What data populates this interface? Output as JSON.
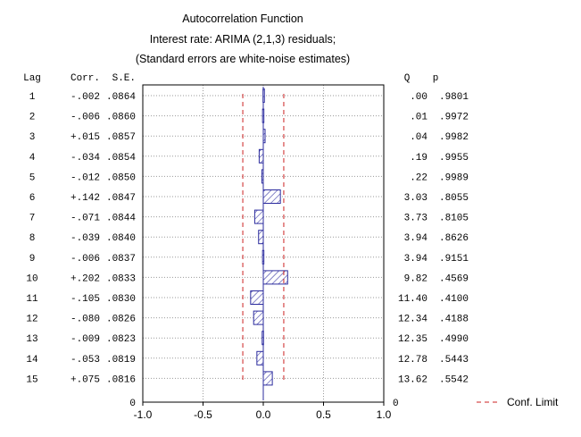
{
  "chart_data": {
    "type": "bar",
    "orientation": "horizontal",
    "title": "Autocorrelation Function",
    "subtitle": "Interest rate: ARIMA (2,1,3) residuals;",
    "subtitle2": "(Standard errors are white-noise estimates)",
    "column_headers": {
      "lag": "Lag",
      "corr": "Corr.",
      "se": "S.E.",
      "q": "Q",
      "p": "p"
    },
    "lags": [
      "1",
      "2",
      "3",
      "4",
      "5",
      "6",
      "7",
      "8",
      "9",
      "10",
      "11",
      "12",
      "13",
      "14",
      "15"
    ],
    "corr": [
      -0.002,
      -0.006,
      0.015,
      -0.034,
      -0.012,
      0.142,
      -0.071,
      -0.039,
      -0.006,
      0.202,
      -0.105,
      -0.08,
      -0.009,
      -0.053,
      0.075
    ],
    "corr_labels": [
      "-.002",
      "-.006",
      "+.015",
      "-.034",
      "-.012",
      "+.142",
      "-.071",
      "-.039",
      "-.006",
      "+.202",
      "-.105",
      "-.080",
      "-.009",
      "-.053",
      "+.075"
    ],
    "se": [
      0.0864,
      0.086,
      0.0857,
      0.0854,
      0.085,
      0.0847,
      0.0844,
      0.084,
      0.0837,
      0.0833,
      0.083,
      0.0826,
      0.0823,
      0.0819,
      0.0816
    ],
    "se_labels": [
      ".0864",
      ".0860",
      ".0857",
      ".0854",
      ".0850",
      ".0847",
      ".0844",
      ".0840",
      ".0837",
      ".0833",
      ".0830",
      ".0826",
      ".0823",
      ".0819",
      ".0816"
    ],
    "q_labels": [
      ".00",
      ".01",
      ".04",
      ".19",
      ".22",
      "3.03",
      "3.73",
      "3.94",
      "3.94",
      "9.82",
      "11.40",
      "12.34",
      "12.35",
      "12.78",
      "13.62"
    ],
    "p_labels": [
      ".9801",
      ".9972",
      ".9982",
      ".9955",
      ".9989",
      ".8055",
      ".8105",
      ".8626",
      ".9151",
      ".4569",
      ".4100",
      ".4188",
      ".4990",
      ".5443",
      ".5542"
    ],
    "xlim": [
      -1.0,
      1.0
    ],
    "x_ticks": [
      -1.0,
      -0.5,
      0.0,
      0.5,
      1.0
    ],
    "x_tick_labels": [
      "-1.0",
      "-0.5",
      "0.0",
      "0.5",
      "1.0"
    ],
    "zero_label": "0",
    "conf_limit": 0.17,
    "legend": {
      "label": "Conf. Limit",
      "position": "right"
    },
    "grid": true,
    "colors": {
      "bar_stroke": "#2b2b9e",
      "bar_hatch": "#2b2b9e",
      "conf_limit": "#cc2222",
      "grid": "#9a9a9a",
      "axis": "#000000"
    }
  }
}
